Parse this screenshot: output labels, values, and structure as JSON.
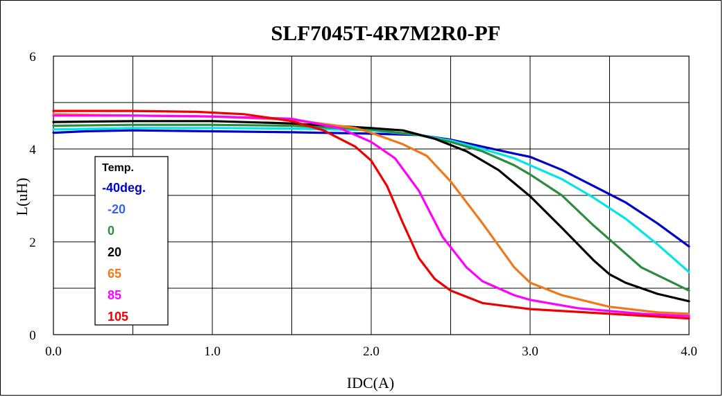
{
  "chart_data": {
    "type": "line",
    "title": "SLF7045T-4R7M2R0-PF",
    "xlabel": "IDC(A)",
    "ylabel": "L(uH)",
    "xlim": [
      0,
      4
    ],
    "ylim": [
      0,
      6
    ],
    "x_ticks": [
      "0.0",
      "1.0",
      "2.0",
      "3.0",
      "4.0"
    ],
    "y_ticks": [
      "0",
      "2",
      "4",
      "6"
    ],
    "x_grid": [
      0,
      0.5,
      1.0,
      1.5,
      2.0,
      2.5,
      3.0,
      3.5,
      4.0
    ],
    "y_grid": [
      0,
      1,
      2,
      3,
      4,
      5,
      6
    ],
    "grid": true,
    "legend_title": "Temp.",
    "legend_position": "left",
    "series": [
      {
        "name": "-40deg.",
        "color": "#0000cc",
        "points": [
          [
            0,
            4.35
          ],
          [
            0.2,
            4.38
          ],
          [
            0.5,
            4.4
          ],
          [
            1.0,
            4.38
          ],
          [
            1.5,
            4.36
          ],
          [
            2.0,
            4.33
          ],
          [
            2.3,
            4.3
          ],
          [
            2.5,
            4.2
          ],
          [
            2.7,
            4.05
          ],
          [
            2.9,
            3.9
          ],
          [
            3.0,
            3.83
          ],
          [
            3.2,
            3.55
          ],
          [
            3.4,
            3.2
          ],
          [
            3.6,
            2.85
          ],
          [
            3.8,
            2.4
          ],
          [
            4.0,
            1.9
          ]
        ]
      },
      {
        "name": "-20",
        "color": "#00e5e5",
        "points": [
          [
            0,
            4.42
          ],
          [
            0.5,
            4.45
          ],
          [
            1.0,
            4.45
          ],
          [
            1.5,
            4.44
          ],
          [
            2.0,
            4.4
          ],
          [
            2.3,
            4.3
          ],
          [
            2.5,
            4.18
          ],
          [
            2.7,
            4.0
          ],
          [
            2.9,
            3.8
          ],
          [
            3.0,
            3.65
          ],
          [
            3.2,
            3.35
          ],
          [
            3.4,
            2.95
          ],
          [
            3.6,
            2.5
          ],
          [
            3.8,
            1.95
          ],
          [
            4.0,
            1.35
          ]
        ]
      },
      {
        "name": "0",
        "color": "#2e8b3e",
        "points": [
          [
            0,
            4.5
          ],
          [
            0.5,
            4.52
          ],
          [
            1.0,
            4.52
          ],
          [
            1.5,
            4.5
          ],
          [
            2.0,
            4.42
          ],
          [
            2.3,
            4.3
          ],
          [
            2.5,
            4.15
          ],
          [
            2.7,
            3.95
          ],
          [
            2.9,
            3.65
          ],
          [
            3.0,
            3.45
          ],
          [
            3.2,
            3.0
          ],
          [
            3.4,
            2.35
          ],
          [
            3.6,
            1.75
          ],
          [
            3.7,
            1.45
          ],
          [
            3.85,
            1.2
          ],
          [
            4.0,
            0.95
          ]
        ]
      },
      {
        "name": "20",
        "color": "#000000",
        "points": [
          [
            0,
            4.58
          ],
          [
            0.5,
            4.6
          ],
          [
            1.0,
            4.6
          ],
          [
            1.5,
            4.55
          ],
          [
            2.0,
            4.45
          ],
          [
            2.2,
            4.4
          ],
          [
            2.4,
            4.22
          ],
          [
            2.6,
            3.95
          ],
          [
            2.8,
            3.55
          ],
          [
            3.0,
            2.98
          ],
          [
            3.2,
            2.3
          ],
          [
            3.4,
            1.6
          ],
          [
            3.5,
            1.3
          ],
          [
            3.6,
            1.12
          ],
          [
            3.8,
            0.88
          ],
          [
            4.0,
            0.72
          ]
        ]
      },
      {
        "name": "65",
        "color": "#f07818",
        "points": [
          [
            0,
            4.75
          ],
          [
            0.5,
            4.72
          ],
          [
            1.0,
            4.7
          ],
          [
            1.5,
            4.63
          ],
          [
            1.9,
            4.45
          ],
          [
            2.0,
            4.35
          ],
          [
            2.2,
            4.1
          ],
          [
            2.35,
            3.85
          ],
          [
            2.5,
            3.3
          ],
          [
            2.7,
            2.4
          ],
          [
            2.9,
            1.45
          ],
          [
            3.0,
            1.12
          ],
          [
            3.2,
            0.85
          ],
          [
            3.5,
            0.6
          ],
          [
            3.8,
            0.48
          ],
          [
            4.0,
            0.45
          ]
        ]
      },
      {
        "name": "85",
        "color": "#ff00ff",
        "points": [
          [
            0,
            4.72
          ],
          [
            0.5,
            4.72
          ],
          [
            1.0,
            4.7
          ],
          [
            1.5,
            4.65
          ],
          [
            1.8,
            4.45
          ],
          [
            2.0,
            4.15
          ],
          [
            2.15,
            3.8
          ],
          [
            2.3,
            3.1
          ],
          [
            2.45,
            2.1
          ],
          [
            2.6,
            1.45
          ],
          [
            2.7,
            1.15
          ],
          [
            2.9,
            0.85
          ],
          [
            3.0,
            0.75
          ],
          [
            3.3,
            0.57
          ],
          [
            3.7,
            0.45
          ],
          [
            4.0,
            0.4
          ]
        ]
      },
      {
        "name": "105",
        "color": "#ee0000",
        "points": [
          [
            0,
            4.82
          ],
          [
            0.5,
            4.82
          ],
          [
            0.9,
            4.8
          ],
          [
            1.2,
            4.75
          ],
          [
            1.5,
            4.6
          ],
          [
            1.7,
            4.4
          ],
          [
            1.9,
            4.05
          ],
          [
            2.0,
            3.75
          ],
          [
            2.1,
            3.2
          ],
          [
            2.2,
            2.4
          ],
          [
            2.3,
            1.65
          ],
          [
            2.4,
            1.2
          ],
          [
            2.5,
            0.95
          ],
          [
            2.7,
            0.68
          ],
          [
            3.0,
            0.55
          ],
          [
            3.5,
            0.45
          ],
          [
            4.0,
            0.35
          ]
        ]
      }
    ]
  }
}
